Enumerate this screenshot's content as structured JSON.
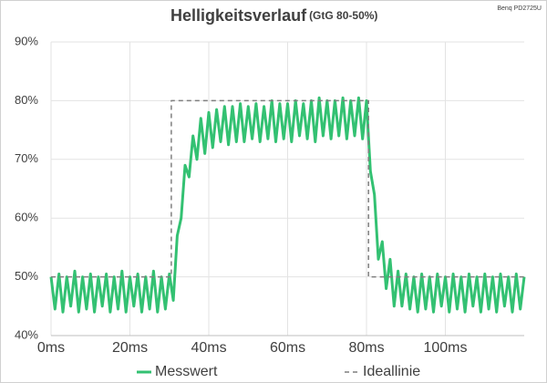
{
  "chart_data": {
    "type": "line",
    "title": "Helligkeitsverlauf",
    "subtitle": "(GtG 80-50%)",
    "annotation": "Benq PD2725U",
    "xlim": [
      0,
      120
    ],
    "ylim": [
      40,
      90
    ],
    "xticks": [
      {
        "value": 0,
        "label": "0ms"
      },
      {
        "value": 20,
        "label": "20ms"
      },
      {
        "value": 40,
        "label": "40ms"
      },
      {
        "value": 60,
        "label": "60ms"
      },
      {
        "value": 80,
        "label": "80ms"
      },
      {
        "value": 100,
        "label": "100ms"
      }
    ],
    "yticks": [
      {
        "value": 40,
        "label": "40%"
      },
      {
        "value": 50,
        "label": "50%"
      },
      {
        "value": 60,
        "label": "60%"
      },
      {
        "value": 70,
        "label": "70%"
      },
      {
        "value": 80,
        "label": "80%"
      },
      {
        "value": 90,
        "label": "90%"
      }
    ],
    "grid": true,
    "legend": "bottom",
    "series": [
      {
        "name": "Messwert",
        "color": "#33c172",
        "dashed": false,
        "x": [
          0,
          1,
          2,
          3,
          4,
          5,
          6,
          7,
          8,
          9,
          10,
          11,
          12,
          13,
          14,
          15,
          16,
          17,
          18,
          19,
          20,
          21,
          22,
          23,
          24,
          25,
          26,
          27,
          28,
          29,
          30,
          31,
          32,
          33,
          34,
          35,
          36,
          37,
          38,
          39,
          40,
          41,
          42,
          43,
          44,
          45,
          46,
          47,
          48,
          49,
          50,
          51,
          52,
          53,
          54,
          55,
          56,
          57,
          58,
          59,
          60,
          61,
          62,
          63,
          64,
          65,
          66,
          67,
          68,
          69,
          70,
          71,
          72,
          73,
          74,
          75,
          76,
          77,
          78,
          79,
          80,
          81,
          82,
          83,
          84,
          85,
          86,
          87,
          88,
          89,
          90,
          91,
          92,
          93,
          94,
          95,
          96,
          97,
          98,
          99,
          100,
          101,
          102,
          103,
          104,
          105,
          106,
          107,
          108,
          109,
          110,
          111,
          112,
          113,
          114,
          115,
          116,
          117,
          118,
          119,
          120
        ],
        "values": [
          50,
          44.5,
          50.5,
          44,
          50,
          45,
          51,
          44,
          50,
          44.5,
          50.5,
          44,
          50,
          45,
          50.5,
          44,
          50,
          44.5,
          51,
          44,
          50,
          45,
          50.5,
          44,
          50,
          44.5,
          51,
          44,
          50,
          44.5,
          50.5,
          46,
          57,
          60,
          69,
          67,
          74,
          70,
          77,
          71,
          78,
          72,
          78.5,
          73,
          79,
          72.5,
          79,
          73,
          79.5,
          73,
          79,
          73.5,
          79.5,
          73,
          79,
          73.5,
          80,
          73,
          79.5,
          73.5,
          79.5,
          73,
          80,
          74,
          79.5,
          73.5,
          80,
          73,
          80.5,
          74,
          80,
          73.5,
          80,
          74,
          80.5,
          73.5,
          80,
          74,
          80.5,
          73.5,
          80,
          68,
          64,
          53,
          56,
          48,
          53,
          45,
          51,
          45,
          50.5,
          44.5,
          50,
          44,
          50.5,
          44.5,
          50,
          44,
          50.5,
          45,
          50,
          44,
          50.5,
          44.5,
          50,
          44,
          50.5,
          45,
          50,
          44,
          50.5,
          44.5,
          50,
          44,
          50.5,
          45,
          50,
          44,
          50.5,
          44.5,
          50
        ]
      },
      {
        "name": "Ideallinie",
        "color": "#7f7f7f",
        "dashed": true,
        "x": [
          0,
          30.5,
          30.5,
          80.5,
          80.5,
          120
        ],
        "values": [
          50,
          50,
          80,
          80,
          50,
          50
        ]
      }
    ]
  }
}
